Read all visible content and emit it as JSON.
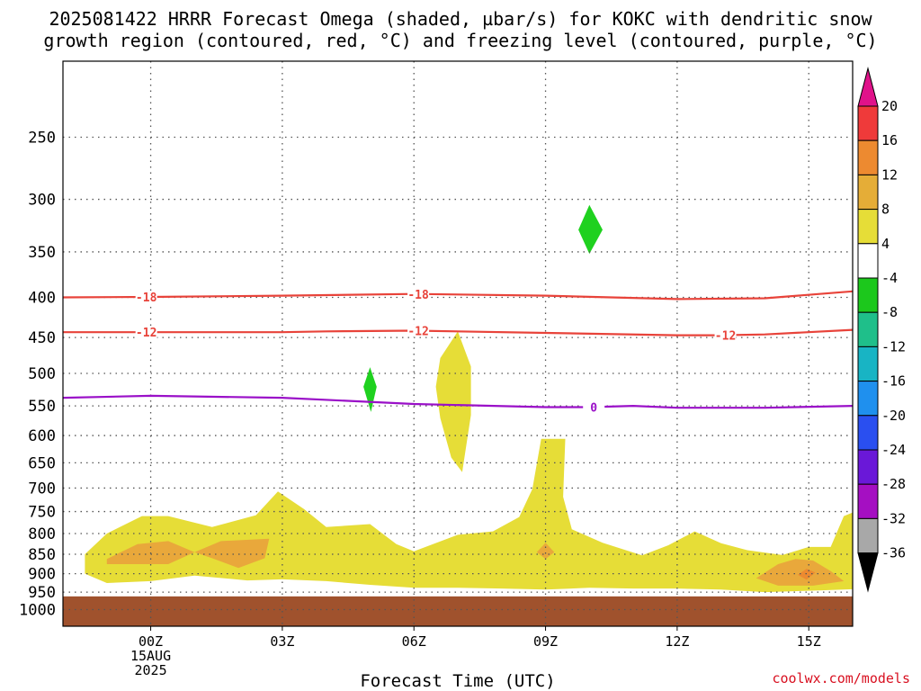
{
  "title_line1": "2025081422 HRRR Forecast Omega (shaded, µbar/s) for KOKC with dendritic snow",
  "title_line2": "growth region (contoured, red, °C) and freezing level (contoured, purple, °C)",
  "credit": "coolwx.com/models",
  "colors": {
    "grid": "#555555",
    "ground": "#a0522d",
    "dendritic_contour": "#e8433a",
    "freezing_contour": "#9a10c8",
    "rising_fill_green": "#1fd11f",
    "sinking_fill_yellow": "#e6dd37",
    "sinking_fill_orange": "#e9a83b"
  },
  "chart_data": {
    "type": "heatmap",
    "xlabel": "Forecast Time (UTC)",
    "ylabel": "",
    "x_ticks": [
      {
        "t": 0,
        "label": "00Z",
        "sub": [
          "15AUG",
          "2025"
        ]
      },
      {
        "t": 3,
        "label": "03Z",
        "sub": []
      },
      {
        "t": 6,
        "label": "06Z",
        "sub": []
      },
      {
        "t": 9,
        "label": "09Z",
        "sub": []
      },
      {
        "t": 12,
        "label": "12Z",
        "sub": []
      },
      {
        "t": 15,
        "label": "15Z",
        "sub": []
      }
    ],
    "xlim": [
      -2,
      16
    ],
    "y_ticks": [
      250,
      300,
      350,
      400,
      450,
      500,
      550,
      600,
      650,
      700,
      750,
      800,
      850,
      900,
      950,
      1000
    ],
    "ylim": [
      200,
      1050
    ],
    "y_scale": "log",
    "grid": true,
    "colorbar": {
      "labels": [
        "20",
        "16",
        "12",
        "8",
        "4",
        "-4",
        "-8",
        "-12",
        "-16",
        "-20",
        "-24",
        "-28",
        "-32",
        "-36"
      ],
      "bins": [
        {
          "from": 16,
          "to": 20,
          "color": "#ef3a3a"
        },
        {
          "from": 12,
          "to": 16,
          "color": "#ed8a30"
        },
        {
          "from": 8,
          "to": 12,
          "color": "#e5ad37"
        },
        {
          "from": 4,
          "to": 8,
          "color": "#e6dd37"
        },
        {
          "from": -4,
          "to": 4,
          "color": "#ffffff"
        },
        {
          "from": -8,
          "to": -4,
          "color": "#1cc81c"
        },
        {
          "from": -12,
          "to": -8,
          "color": "#1fbf8a"
        },
        {
          "from": -16,
          "to": -12,
          "color": "#18b4c4"
        },
        {
          "from": -20,
          "to": -16,
          "color": "#1f90ee"
        },
        {
          "from": -24,
          "to": -20,
          "color": "#2a4ff0"
        },
        {
          "from": -28,
          "to": -24,
          "color": "#6a18d8"
        },
        {
          "from": -32,
          "to": -28,
          "color": "#a50fc2"
        },
        {
          "from": -36,
          "to": -32,
          "color": "#a8a8a8"
        }
      ],
      "over_color": "#e0128a",
      "under_color": "#000000"
    },
    "ground_level_hpa": 962,
    "contours": [
      {
        "name": "-18",
        "color": "#e8433a",
        "label": "-18",
        "label_times": [
          -0.1,
          6.1
        ],
        "points": [
          [
            -2,
            400
          ],
          [
            0,
            399.5
          ],
          [
            3,
            398
          ],
          [
            6,
            396
          ],
          [
            9,
            398
          ],
          [
            12,
            402
          ],
          [
            14,
            401
          ],
          [
            16,
            393
          ]
        ]
      },
      {
        "name": "-12",
        "color": "#e8433a",
        "label": "-12",
        "label_times": [
          -0.1,
          6.1,
          13.1
        ],
        "points": [
          [
            -2,
            443
          ],
          [
            0,
            443
          ],
          [
            3,
            443
          ],
          [
            4,
            442
          ],
          [
            6,
            441
          ],
          [
            9,
            444
          ],
          [
            12,
            447
          ],
          [
            13,
            447
          ],
          [
            14,
            446
          ],
          [
            16,
            440
          ]
        ]
      },
      {
        "name": "0",
        "color": "#9a10c8",
        "label": "0",
        "label_times": [
          10.1
        ],
        "points": [
          [
            -2,
            537
          ],
          [
            0,
            534
          ],
          [
            3,
            537
          ],
          [
            6,
            547
          ],
          [
            9,
            552
          ],
          [
            10,
            552
          ],
          [
            11,
            550
          ],
          [
            12,
            553
          ],
          [
            14,
            553
          ],
          [
            16,
            550
          ]
        ]
      }
    ],
    "omega_regions": [
      {
        "value": -6,
        "color": "#1fd11f",
        "points": [
          [
            10.0,
            305
          ],
          [
            10.3,
            328
          ],
          [
            10.0,
            352
          ],
          [
            9.75,
            328
          ]
        ]
      },
      {
        "value": -6,
        "color": "#1fd11f",
        "points": [
          [
            5.0,
            491
          ],
          [
            5.15,
            520
          ],
          [
            5.02,
            560
          ],
          [
            4.85,
            520
          ]
        ]
      },
      {
        "value": 6,
        "color": "#e6dd37",
        "points": [
          [
            -1.5,
            850
          ],
          [
            -1.0,
            800
          ],
          [
            -0.2,
            760
          ],
          [
            0.4,
            760
          ],
          [
            1.4,
            785
          ],
          [
            2.4,
            758
          ],
          [
            2.9,
            707
          ],
          [
            3.5,
            745
          ],
          [
            4.0,
            785
          ],
          [
            5.0,
            778
          ],
          [
            5.6,
            825
          ],
          [
            6.0,
            843
          ],
          [
            7.0,
            803
          ],
          [
            7.8,
            795
          ],
          [
            8.4,
            762
          ],
          [
            8.7,
            702
          ],
          [
            8.9,
            606
          ],
          [
            9.45,
            606
          ],
          [
            9.4,
            718
          ],
          [
            9.6,
            790
          ],
          [
            10.3,
            822
          ],
          [
            11.2,
            853
          ],
          [
            11.8,
            828
          ],
          [
            12.4,
            795
          ],
          [
            13.0,
            823
          ],
          [
            13.6,
            840
          ],
          [
            14.4,
            852
          ],
          [
            15.0,
            832
          ],
          [
            15.5,
            832
          ],
          [
            15.8,
            760
          ],
          [
            16.0,
            752
          ],
          [
            16.0,
            942
          ],
          [
            15.3,
            945
          ],
          [
            14.0,
            950
          ],
          [
            13.0,
            943
          ],
          [
            12.0,
            940
          ],
          [
            11.0,
            940
          ],
          [
            10.0,
            938
          ],
          [
            9.0,
            943
          ],
          [
            8.0,
            940
          ],
          [
            7.0,
            938
          ],
          [
            6.0,
            938
          ],
          [
            5.0,
            930
          ],
          [
            4.0,
            920
          ],
          [
            3.0,
            915
          ],
          [
            2.2,
            918
          ],
          [
            1.0,
            905
          ],
          [
            0.0,
            920
          ],
          [
            -1.0,
            925
          ],
          [
            -1.5,
            900
          ]
        ]
      },
      {
        "value": 6,
        "color": "#e6dd37",
        "points": [
          [
            7.0,
            442
          ],
          [
            7.3,
            490
          ],
          [
            7.3,
            565
          ],
          [
            7.1,
            668
          ],
          [
            6.85,
            640
          ],
          [
            6.6,
            570
          ],
          [
            6.5,
            520
          ],
          [
            6.6,
            478
          ]
        ]
      },
      {
        "value": 9,
        "color": "#e9a83b",
        "points": [
          [
            -1.0,
            862
          ],
          [
            -0.3,
            825
          ],
          [
            0.4,
            818
          ],
          [
            1.0,
            845
          ],
          [
            0.4,
            875
          ],
          [
            -1.0,
            875
          ]
        ]
      },
      {
        "value": 9,
        "color": "#e9a83b",
        "points": [
          [
            1.0,
            845
          ],
          [
            1.6,
            818
          ],
          [
            2.7,
            812
          ],
          [
            2.6,
            860
          ],
          [
            2.0,
            885
          ],
          [
            1.4,
            860
          ]
        ]
      },
      {
        "value": 9,
        "color": "#e9a83b",
        "points": [
          [
            8.8,
            845
          ],
          [
            9.0,
            822
          ],
          [
            9.2,
            845
          ],
          [
            9.0,
            862
          ]
        ]
      },
      {
        "value": 9,
        "color": "#e9a83b",
        "points": [
          [
            13.8,
            912
          ],
          [
            14.3,
            875
          ],
          [
            14.7,
            862
          ],
          [
            15.1,
            866
          ],
          [
            15.5,
            893
          ],
          [
            15.8,
            920
          ],
          [
            15.1,
            932
          ],
          [
            14.3,
            932
          ]
        ]
      },
      {
        "value": 14,
        "color": "#ed8a30",
        "points": [
          [
            14.75,
            903
          ],
          [
            14.95,
            887
          ],
          [
            15.15,
            897
          ],
          [
            14.95,
            916
          ]
        ]
      }
    ]
  }
}
